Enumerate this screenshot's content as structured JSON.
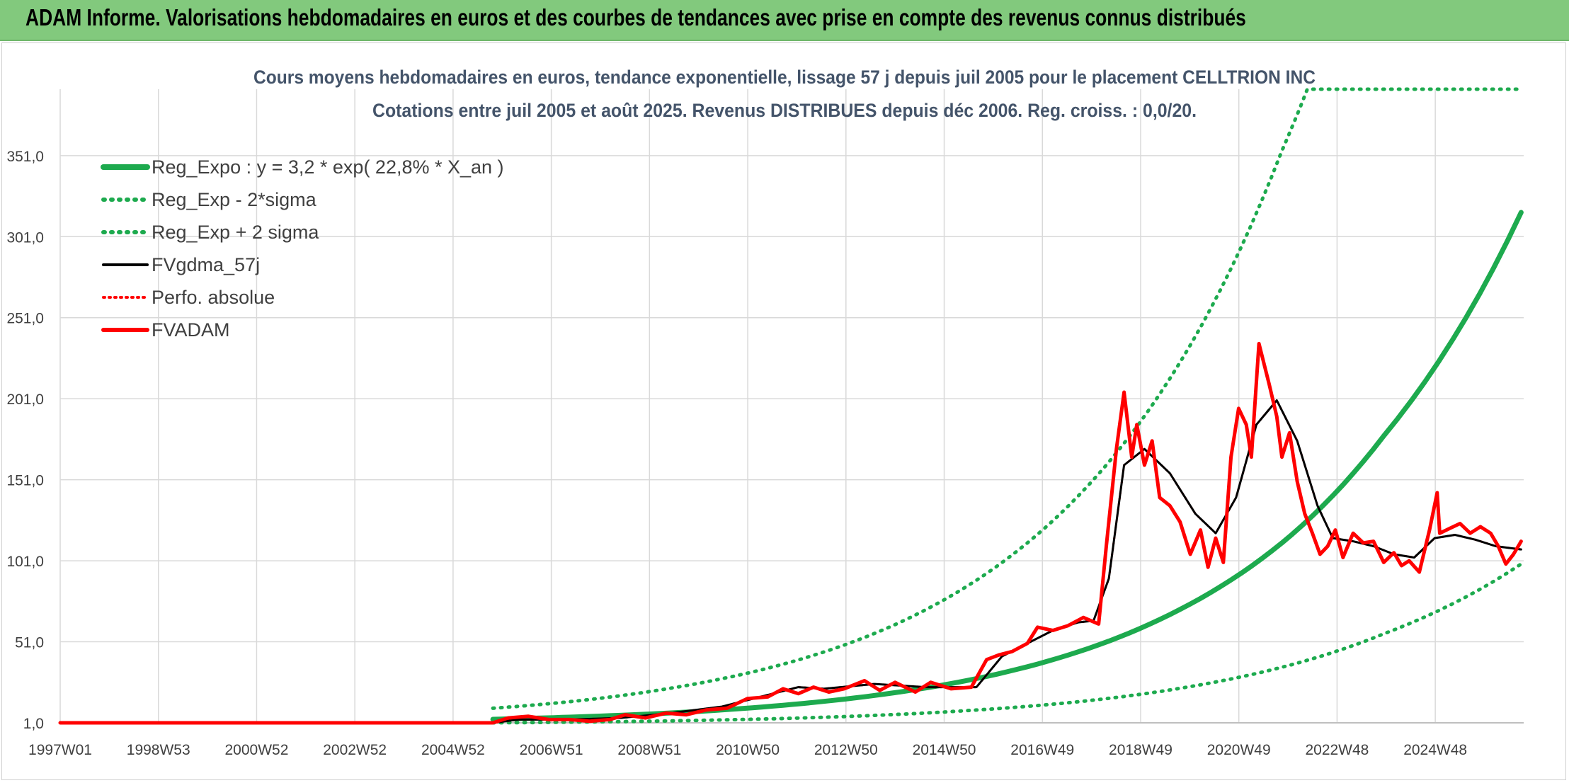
{
  "header": {
    "title": "ADAM Informe. Valorisations hebdomadaires en euros et des courbes de tendances avec prise en compte des revenus connus distribués"
  },
  "colors": {
    "header_bg": "#82c97d",
    "regression": "#1daa4e",
    "price": "#ff0000",
    "smoothing": "#000000",
    "grid": "#d9d9d9",
    "text": "#44546a"
  },
  "chart_data": {
    "type": "line",
    "title": "Cours moyens hebdomadaires en euros, tendance exponentielle, lissage 57 j depuis juil 2005 pour le placement CELLTRION INC",
    "subtitle": "Cotations entre juil 2005 et août 2025. Revenus DISTRIBUES depuis déc 2006. Reg. croiss. : 0,0/20.",
    "xlabel": "",
    "ylabel": "",
    "ylim": [
      1,
      392
    ],
    "y_ticks": [
      "1,0",
      "51,0",
      "101,0",
      "151,0",
      "201,0",
      "251,0",
      "301,0",
      "351,0"
    ],
    "x_ticks": [
      "1997W01",
      "1998W53",
      "2000W52",
      "2002W52",
      "2004W52",
      "2006W51",
      "2008W51",
      "2010W50",
      "2012W50",
      "2014W50",
      "2016W49",
      "2018W49",
      "2020W49",
      "2022W48",
      "2024W48"
    ],
    "x_range_years": [
      1997.0,
      2025.75
    ],
    "grid": true,
    "legend_position": "top-left",
    "legend": [
      {
        "label": "Reg_Expo : y = 3,2 * exp( 22,8% *  X_an )",
        "style": "solid-green"
      },
      {
        "label": "Reg_Exp - 2*sigma",
        "style": "dotted-green"
      },
      {
        "label": "Reg_Exp + 2 sigma",
        "style": "dotted-green"
      },
      {
        "label": "FVgdma_57j",
        "style": "solid-black"
      },
      {
        "label": "Perfo. absolue",
        "style": "dotted-red"
      },
      {
        "label": "FVADAM",
        "style": "solid-red"
      }
    ],
    "series": [
      {
        "name": "Reg_Expo : y = 3,2 * exp( 22,8% *  X_an )",
        "x": [
          2005.5,
          2007,
          2009,
          2011,
          2013,
          2015,
          2017,
          2019,
          2021,
          2023,
          2025.7
        ],
        "y": [
          3.2,
          4.5,
          7.1,
          11.3,
          17.9,
          28.3,
          44.8,
          71,
          112,
          178,
          316
        ]
      },
      {
        "name": "Reg_Exp - 2*sigma",
        "x": [
          2005.5,
          2007,
          2009,
          2011,
          2013,
          2015,
          2017,
          2019,
          2021,
          2023,
          2025.7
        ],
        "y": [
          1.0,
          1.4,
          2.2,
          3.5,
          5.6,
          8.9,
          14,
          22.3,
          35.3,
          55.9,
          99
        ]
      },
      {
        "name": "Reg_Exp + 2 sigma",
        "x": [
          2005.5,
          2007,
          2009,
          2011,
          2013,
          2015,
          2017,
          2019,
          2021,
          2021.5,
          2025.7
        ],
        "y": [
          10,
          14,
          22.4,
          35.5,
          56.2,
          89,
          141,
          223.5,
          354,
          392,
          392
        ]
      },
      {
        "name": "FVgdma_57j",
        "x": [
          1997.0,
          2005.5,
          2006.0,
          2007.0,
          2008.0,
          2009.0,
          2010.0,
          2011.0,
          2011.5,
          2012.0,
          2013.0,
          2014.0,
          2015.0,
          2015.5,
          2016.0,
          2016.5,
          2017.0,
          2017.3,
          2017.6,
          2017.9,
          2018.3,
          2018.8,
          2019.3,
          2019.7,
          2020.1,
          2020.5,
          2020.9,
          2021.3,
          2021.7,
          2022.0,
          2022.4,
          2022.8,
          2023.2,
          2023.6,
          2024.0,
          2024.4,
          2024.8,
          2025.2,
          2025.7
        ],
        "y": [
          1,
          1,
          3,
          3,
          4,
          7,
          11,
          19,
          23,
          22,
          25,
          23,
          23,
          42,
          50,
          58,
          63,
          64,
          90,
          160,
          170,
          155,
          130,
          118,
          140,
          185,
          200,
          175,
          135,
          115,
          113,
          110,
          105,
          103,
          115,
          117,
          114,
          110,
          108
        ]
      },
      {
        "name": "Perfo. absolue",
        "x": [
          1997.0,
          2005.5,
          2006.0,
          2007.0,
          2008.0,
          2009.0,
          2010.0,
          2011.0,
          2011.5,
          2012.0,
          2013.0,
          2014.0,
          2015.0,
          2015.5,
          2016.0,
          2016.5,
          2017.0,
          2017.3,
          2017.6,
          2017.9,
          2018.3,
          2018.8,
          2019.3,
          2019.7,
          2020.1,
          2020.5,
          2020.9,
          2021.3,
          2021.7,
          2022.0,
          2022.4,
          2022.8,
          2023.2,
          2023.6,
          2024.0,
          2024.4,
          2024.8,
          2025.2,
          2025.7
        ],
        "y": [
          1,
          1,
          3,
          3,
          4,
          7,
          11,
          19,
          23,
          22,
          25,
          23,
          23,
          42,
          50,
          58,
          63,
          64,
          90,
          160,
          170,
          155,
          130,
          118,
          140,
          185,
          200,
          175,
          135,
          115,
          113,
          110,
          105,
          103,
          115,
          117,
          114,
          110,
          108
        ]
      },
      {
        "name": "FVADAM",
        "x": [
          1997.0,
          2005.5,
          2005.8,
          2006.2,
          2006.6,
          2007.0,
          2007.4,
          2007.8,
          2008.1,
          2008.5,
          2008.9,
          2009.3,
          2009.7,
          2010.1,
          2010.5,
          2010.9,
          2011.2,
          2011.5,
          2011.8,
          2012.1,
          2012.4,
          2012.8,
          2013.1,
          2013.4,
          2013.8,
          2014.1,
          2014.5,
          2014.9,
          2015.2,
          2015.45,
          2015.7,
          2016.0,
          2016.2,
          2016.5,
          2016.8,
          2017.1,
          2017.4,
          2017.55,
          2017.75,
          2017.9,
          2018.05,
          2018.15,
          2018.3,
          2018.45,
          2018.6,
          2018.8,
          2019.0,
          2019.2,
          2019.4,
          2019.55,
          2019.7,
          2019.85,
          2020.0,
          2020.15,
          2020.3,
          2020.4,
          2020.55,
          2020.75,
          2020.9,
          2021.0,
          2021.15,
          2021.3,
          2021.45,
          2021.6,
          2021.75,
          2021.9,
          2022.05,
          2022.2,
          2022.4,
          2022.6,
          2022.8,
          2023.0,
          2023.2,
          2023.35,
          2023.5,
          2023.7,
          2023.9,
          2024.05,
          2024.1,
          2024.3,
          2024.5,
          2024.7,
          2024.9,
          2025.1,
          2025.25,
          2025.4,
          2025.55,
          2025.7
        ],
        "y": [
          1,
          1,
          4,
          5,
          3,
          3,
          2,
          3,
          6,
          4,
          7,
          6,
          9,
          10,
          16,
          17,
          22,
          19,
          23,
          20,
          22,
          27,
          21,
          26,
          20,
          26,
          22,
          23,
          40,
          43,
          45,
          50,
          60,
          58,
          61,
          66,
          62,
          110,
          170,
          205,
          165,
          185,
          160,
          175,
          140,
          135,
          125,
          105,
          120,
          97,
          115,
          100,
          165,
          195,
          185,
          165,
          235,
          210,
          190,
          165,
          180,
          150,
          130,
          118,
          105,
          110,
          120,
          103,
          118,
          112,
          113,
          100,
          106,
          98,
          101,
          94,
          120,
          143,
          118,
          121,
          124,
          118,
          122,
          118,
          110,
          99,
          105,
          113
        ]
      }
    ]
  }
}
